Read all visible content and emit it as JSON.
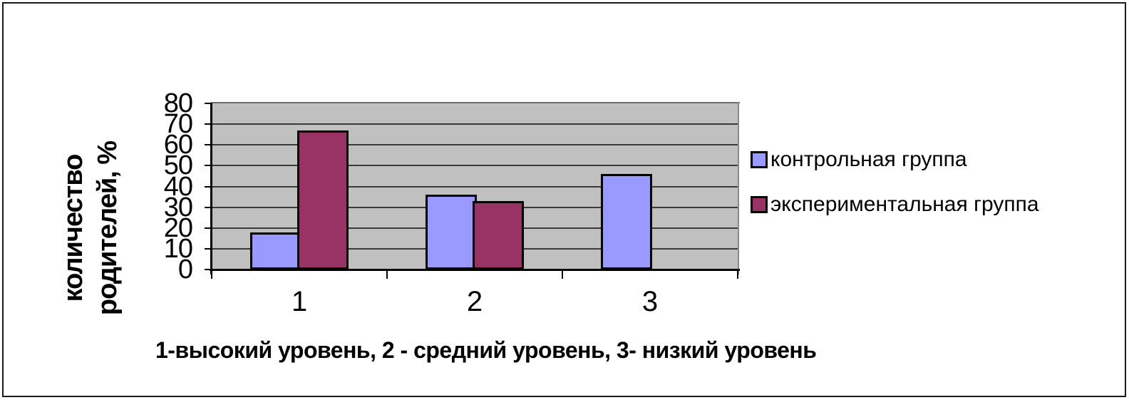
{
  "chart_data": {
    "type": "bar",
    "title": "",
    "categories": [
      "1",
      "2",
      "3"
    ],
    "series": [
      {
        "name": "контрольная группа",
        "color": "#9999ff",
        "values": [
          18,
          36,
          46
        ]
      },
      {
        "name": "экспериментальная группа",
        "color": "#993366",
        "values": [
          67,
          33,
          0
        ]
      }
    ],
    "xlabel": "",
    "ylabel": "количество родителей, %",
    "ylabel_lines": [
      "количество",
      "родителей, %"
    ],
    "ylim": [
      0,
      80
    ],
    "ytick_step": 10,
    "yticks": [
      0,
      10,
      20,
      30,
      40,
      50,
      60,
      70,
      80
    ],
    "grid": true,
    "legend_position": "right",
    "plot_bg_color": "#c0c0c0",
    "gridline_color": "#3a3a3a",
    "bar_border_color": "#000000",
    "caption": "1-высокий уровень, 2 - средний уровень, 3- низкий уровень"
  }
}
